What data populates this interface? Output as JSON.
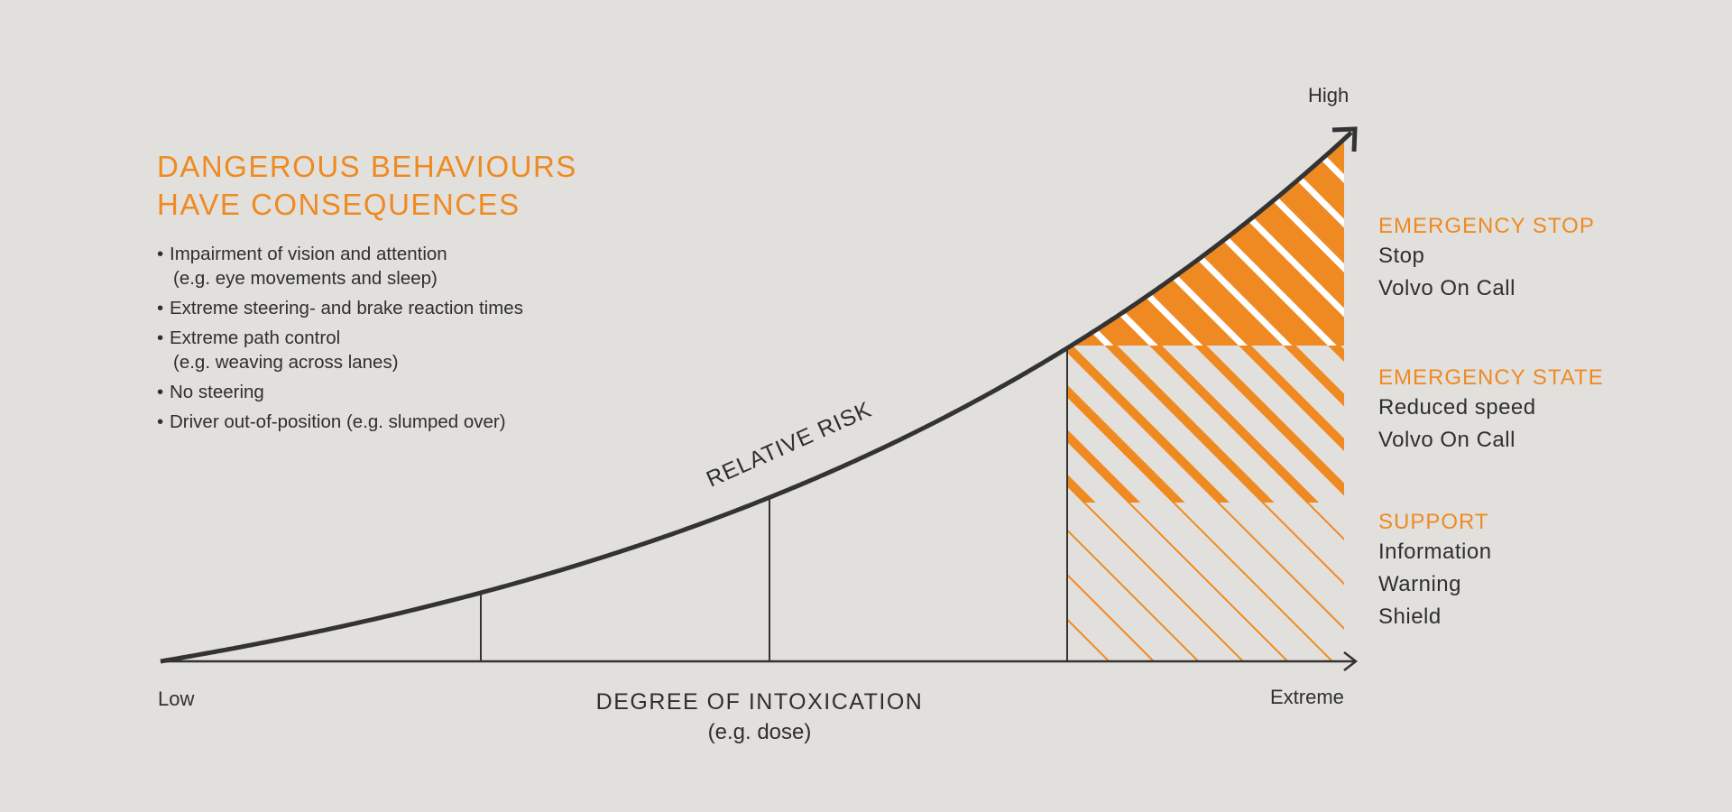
{
  "heading": {
    "line1": "DANGEROUS BEHAVIOURS",
    "line2": "HAVE CONSEQUENCES"
  },
  "behaviours": [
    {
      "text": "Impairment of vision and attention",
      "sub": "(e.g. eye movements and sleep)"
    },
    {
      "text": "Extreme steering- and brake reaction times",
      "sub": ""
    },
    {
      "text": "Extreme path control",
      "sub": "(e.g. weaving across lanes)"
    },
    {
      "text": "No steering",
      "sub": ""
    },
    {
      "text": "Driver out-of-position (e.g. slumped over)",
      "sub": ""
    }
  ],
  "axes": {
    "y_high": "High",
    "x_low": "Low",
    "x_high": "Extreme",
    "x_title": "DEGREE OF INTOXICATION",
    "x_subtitle": "(e.g. dose)",
    "curve_label": "RELATIVE RISK"
  },
  "zones": [
    {
      "title": "EMERGENCY STOP",
      "items": [
        "Stop",
        "Volvo On Call"
      ]
    },
    {
      "title": "EMERGENCY STATE",
      "items": [
        "Reduced speed",
        "Volvo On Call"
      ]
    },
    {
      "title": "SUPPORT",
      "items": [
        "Information",
        "Warning",
        "Shield"
      ]
    }
  ],
  "colors": {
    "accent": "#ef8a23",
    "background": "#e2e0dc",
    "line": "#333333"
  }
}
